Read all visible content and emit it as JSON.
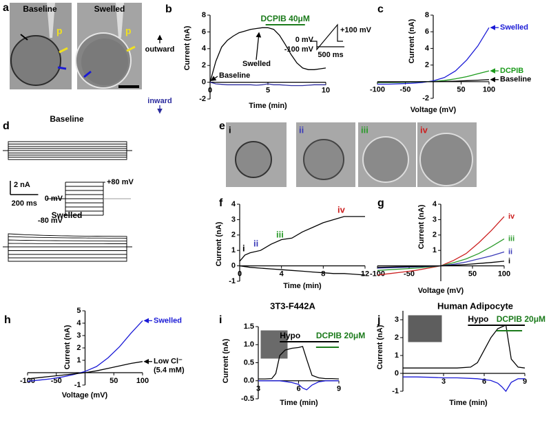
{
  "figure": {
    "a": {
      "letter": "a",
      "titles": [
        "Baseline",
        "Swelled"
      ],
      "probe": "p"
    },
    "e": {
      "letter": "e",
      "labels": [
        "i",
        "ii",
        "iii",
        "iv"
      ],
      "colors": [
        "#000000",
        "#3a3ab8",
        "#2a9a2a",
        "#cc1f1f"
      ]
    }
  },
  "chart_data": [
    {
      "panel": "b",
      "type": "line",
      "xlabel": "Time (min)",
      "ylabel": "Current (nA)",
      "xlim": [
        0,
        10
      ],
      "ylim": [
        -2,
        8
      ],
      "xticks": [
        0,
        5,
        10
      ],
      "yticks": [
        -2,
        0,
        2,
        4,
        6,
        8
      ],
      "x": [
        0,
        0.5,
        1,
        1.5,
        2,
        2.5,
        3,
        3.5,
        4,
        4.5,
        5,
        5.5,
        6,
        6.5,
        7,
        7.5,
        8,
        8.5,
        9,
        9.5,
        10
      ],
      "series": [
        {
          "color": "#000000",
          "values": [
            0,
            2.5,
            4.2,
            5.0,
            5.5,
            5.9,
            6.1,
            6.3,
            6.4,
            6.5,
            6.5,
            6.3,
            5.6,
            4.5,
            3.3,
            2.3,
            1.7,
            1.5,
            1.5,
            1.6,
            1.7
          ]
        },
        {
          "color": "#2b2b9e",
          "values": [
            0,
            -0.2,
            -0.25,
            -0.3,
            -0.3,
            -0.3,
            -0.3,
            -0.3,
            -0.35,
            -0.3,
            -0.2,
            -0.3,
            -0.3,
            -0.35,
            -0.4,
            -0.4,
            -0.4,
            -0.35,
            -0.3,
            -0.3,
            -0.3
          ]
        }
      ],
      "annotations": [
        {
          "text": "Baseline",
          "color": "#000000"
        },
        {
          "text": "Swelled",
          "color": "#000000"
        },
        {
          "text": "outward",
          "color": "#000000"
        },
        {
          "text": "inward",
          "color": "#2b2b9e"
        }
      ],
      "bars": [
        {
          "label": "DCPIB 40μM",
          "start": 4.8,
          "end": 8.2,
          "color": "#1a7a1a"
        }
      ],
      "inset_labels": [
        "0 mV",
        "-100 mV",
        "+100 mV",
        "500 ms"
      ]
    },
    {
      "panel": "c",
      "type": "line",
      "xlabel": "Voltage (mV)",
      "ylabel": "Current (nA)",
      "xlim": [
        -100,
        100
      ],
      "ylim": [
        -2,
        8
      ],
      "xticks": [
        -100,
        -50,
        50,
        100
      ],
      "yticks": [
        -2,
        2,
        4,
        6,
        8
      ],
      "x": [
        -100,
        -80,
        -60,
        -40,
        -20,
        0,
        20,
        40,
        60,
        80,
        100
      ],
      "series": [
        {
          "name": "Swelled",
          "color": "#1a1ad6",
          "values": [
            -0.3,
            -0.3,
            -0.25,
            -0.2,
            -0.1,
            0.1,
            0.5,
            1.3,
            2.6,
            4.3,
            6.5
          ]
        },
        {
          "name": "DCPIB",
          "color": "#1a9a1a",
          "values": [
            -0.1,
            -0.1,
            -0.08,
            -0.05,
            -0.02,
            0.02,
            0.15,
            0.35,
            0.6,
            0.95,
            1.3
          ]
        },
        {
          "name": "Baseline",
          "color": "#000000",
          "values": [
            -0.05,
            -0.04,
            -0.03,
            -0.02,
            -0.01,
            0,
            0.03,
            0.07,
            0.12,
            0.18,
            0.25
          ]
        }
      ]
    },
    {
      "panel": "d",
      "type": "traces",
      "duration": 850,
      "groups": [
        {
          "title": "Baseline",
          "start": [
            -1.3,
            -0.95,
            -0.65,
            -0.35,
            0,
            0.3,
            0.6,
            0.95,
            1.3
          ],
          "end": [
            -1.3,
            -0.95,
            -0.65,
            -0.35,
            0,
            0.3,
            0.6,
            0.95,
            1.3
          ]
        },
        {
          "title": "Swelled",
          "start": [
            -2.1,
            -1.6,
            -1.1,
            -0.55,
            0,
            0.5,
            1.0,
            1.5,
            1.9
          ],
          "end": [
            -2.1,
            -1.6,
            -1.1,
            -0.55,
            0,
            0.45,
            0.85,
            1.25,
            1.5
          ]
        }
      ],
      "scalebar": [
        {
          "value": 2,
          "label": "2 nA"
        },
        {
          "value": 200,
          "label": "200 ms"
        }
      ],
      "protocol": {
        "levels": [
          -80,
          -60,
          -40,
          -20,
          0,
          20,
          40,
          60,
          80
        ],
        "ticks": [
          {
            "value": 80,
            "label": "+80 mV"
          },
          {
            "value": 0,
            "label": "0 mV"
          },
          {
            "value": -80,
            "label": "-80 mV"
          }
        ]
      }
    },
    {
      "panel": "f",
      "type": "line",
      "xlabel": "Time (min)",
      "ylabel": "Current (nA)",
      "xlim": [
        0,
        12
      ],
      "ylim": [
        -1,
        4
      ],
      "xticks": [
        0,
        4,
        8,
        12
      ],
      "yticks": [
        -1,
        0,
        1,
        2,
        3,
        4
      ],
      "x": [
        0,
        0.5,
        1,
        2,
        3,
        4,
        5,
        6,
        7,
        8,
        9,
        10,
        11,
        12
      ],
      "series": [
        {
          "color": "#000000",
          "values": [
            0.3,
            0.7,
            0.85,
            1.0,
            1.4,
            1.7,
            1.8,
            2.2,
            2.5,
            2.8,
            3.0,
            3.2,
            3.2,
            3.2
          ]
        },
        {
          "color": "#000000",
          "values": [
            0,
            -0.05,
            -0.1,
            -0.15,
            -0.2,
            -0.25,
            -0.3,
            -0.35,
            -0.4,
            -0.45,
            -0.5,
            -0.5,
            -0.55,
            -0.6
          ]
        }
      ],
      "annotations": [
        {
          "text": "i",
          "color": "#000000"
        },
        {
          "text": "ii",
          "color": "#3a3ab8"
        },
        {
          "text": "iii",
          "color": "#2a9a2a"
        },
        {
          "text": "iv",
          "color": "#cc1f1f"
        }
      ]
    },
    {
      "panel": "g",
      "type": "line",
      "xlabel": "Voltage (mV)",
      "ylabel": "Current (nA)",
      "xlim": [
        -100,
        100
      ],
      "ylim": [
        -1,
        4
      ],
      "xticks": [
        -100,
        -50,
        50,
        100
      ],
      "yticks": [
        1,
        2,
        3,
        4
      ],
      "x": [
        -100,
        -80,
        -60,
        -40,
        -20,
        0,
        20,
        40,
        60,
        80,
        100
      ],
      "series": [
        {
          "name": "iv",
          "color": "#cc1f1f",
          "values": [
            -0.6,
            -0.5,
            -0.4,
            -0.3,
            -0.15,
            0,
            0.35,
            0.8,
            1.5,
            2.3,
            3.2
          ]
        },
        {
          "name": "iii",
          "color": "#2a9a2a",
          "values": [
            -0.3,
            -0.25,
            -0.2,
            -0.15,
            -0.08,
            0,
            0.2,
            0.45,
            0.8,
            1.25,
            1.75
          ]
        },
        {
          "name": "ii",
          "color": "#3a3ab8",
          "values": [
            -0.15,
            -0.12,
            -0.1,
            -0.07,
            -0.04,
            0,
            0.1,
            0.25,
            0.45,
            0.65,
            0.9
          ]
        },
        {
          "name": "i",
          "color": "#000000",
          "values": [
            -0.1,
            -0.08,
            -0.06,
            -0.04,
            -0.02,
            0,
            0.04,
            0.09,
            0.15,
            0.22,
            0.3
          ]
        }
      ]
    },
    {
      "panel": "h",
      "type": "line",
      "xlabel": "Voltage (mV)",
      "ylabel": "Current (nA)",
      "xlim": [
        -100,
        100
      ],
      "ylim": [
        -1,
        5
      ],
      "xticks": [
        -100,
        -50,
        50,
        100
      ],
      "yticks": [
        -1,
        1,
        2,
        3,
        4,
        5
      ],
      "x": [
        -100,
        -80,
        -60,
        -40,
        -20,
        0,
        20,
        40,
        60,
        80,
        100
      ],
      "series": [
        {
          "name": "Swelled",
          "color": "#1a1ad6",
          "values": [
            -0.7,
            -0.6,
            -0.5,
            -0.35,
            -0.15,
            0.1,
            0.5,
            1.2,
            2.1,
            3.2,
            4.2
          ]
        },
        {
          "name": "Low Cl⁻",
          "note": "(5.4 mM)",
          "color": "#000000",
          "values": [
            -0.5,
            -0.4,
            -0.3,
            -0.2,
            -0.1,
            0,
            0.15,
            0.35,
            0.55,
            0.75,
            0.9
          ]
        }
      ]
    },
    {
      "panel": "i",
      "type": "line",
      "title": "3T3-F442A",
      "xlabel": "Time (min)",
      "ylabel": "Current (nA)",
      "xlim": [
        3,
        9
      ],
      "ylim": [
        -0.5,
        1.5
      ],
      "xticks": [
        3,
        6,
        9
      ],
      "yticks": [
        -0.5,
        {
          "value": 0,
          "label": "0.0"
        },
        0.5,
        {
          "value": 1,
          "label": "1.0"
        },
        1.5
      ],
      "x": [
        3,
        3.5,
        4,
        4.3,
        4.6,
        5,
        5.5,
        6,
        6.3,
        6.6,
        7,
        7.5,
        8,
        8.5,
        9
      ],
      "series": [
        {
          "color": "#000000",
          "values": [
            0.05,
            0.05,
            0.06,
            0.2,
            0.7,
            0.85,
            0.9,
            0.92,
            0.95,
            0.6,
            0.15,
            0.08,
            0.06,
            0.06,
            0.05
          ]
        },
        {
          "color": "#1a1ad6",
          "values": [
            0,
            0,
            0,
            0,
            0,
            -0.02,
            -0.05,
            -0.1,
            -0.2,
            -0.25,
            -0.12,
            -0.03,
            0,
            0,
            0
          ]
        }
      ],
      "bars": [
        {
          "label": "Hypo",
          "start": 4.6,
          "end": 9,
          "color": "#000000"
        },
        {
          "label": "DCPIB 20μM",
          "start": 7.3,
          "end": 9,
          "color": "#1a7a1a"
        }
      ]
    },
    {
      "panel": "j",
      "type": "line",
      "title": "Human Adipocyte",
      "xlabel": "Time (min)",
      "ylabel": "Current (nA)",
      "xlim": [
        0,
        9
      ],
      "ylim": [
        -1,
        3.5
      ],
      "xticks": [
        3,
        6,
        9
      ],
      "yticks": [
        -1,
        0,
        1,
        2,
        3
      ],
      "x": [
        0,
        1,
        2,
        3,
        4,
        5,
        5.5,
        6,
        6.5,
        7,
        7.3,
        7.6,
        8,
        8.5,
        9
      ],
      "series": [
        {
          "color": "#000000",
          "values": [
            0.3,
            0.3,
            0.3,
            0.3,
            0.3,
            0.35,
            0.6,
            1.3,
            2.0,
            2.5,
            2.6,
            2.7,
            0.8,
            0.35,
            0.3
          ]
        },
        {
          "color": "#1a1ad6",
          "values": [
            -0.2,
            -0.2,
            -0.22,
            -0.25,
            -0.25,
            -0.28,
            -0.3,
            -0.35,
            -0.4,
            -0.55,
            -0.75,
            -1.0,
            -0.5,
            -0.3,
            -0.3
          ]
        }
      ],
      "bars": [
        {
          "label": "Hypo",
          "start": 4.8,
          "end": 9,
          "color": "#000000"
        },
        {
          "label": "DCPIB 20μM",
          "start": 6.9,
          "end": 8.8,
          "color": "#1a7a1a"
        }
      ]
    }
  ]
}
